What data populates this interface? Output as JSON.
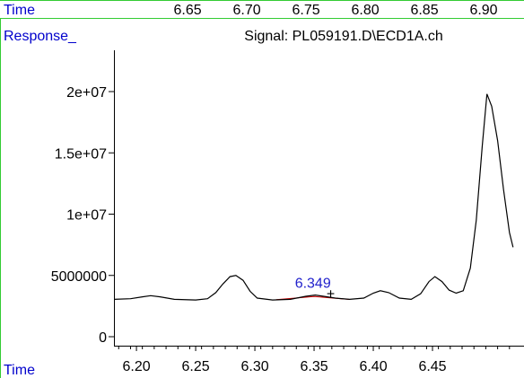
{
  "chart_data": {
    "type": "line",
    "title": "Signal: PL059191.D\\ECD1A.ch",
    "ylabel": "Response_",
    "xlabel": "Time",
    "top_axis_label": "Time",
    "ylim": [
      0,
      22000000
    ],
    "xlim": [
      6.181,
      6.525
    ],
    "yticks": [
      {
        "value": 0,
        "label": "0"
      },
      {
        "value": 5000000,
        "label": "5000000"
      },
      {
        "value": 10000000,
        "label": "1e+07"
      },
      {
        "value": 15000000,
        "label": "1.5e+07"
      },
      {
        "value": 20000000,
        "label": "2e+07"
      }
    ],
    "xticks": [
      {
        "value": 6.2,
        "label": "6.20"
      },
      {
        "value": 6.25,
        "label": "6.25"
      },
      {
        "value": 6.3,
        "label": "6.30"
      },
      {
        "value": 6.35,
        "label": "6.35"
      },
      {
        "value": 6.4,
        "label": "6.40"
      },
      {
        "value": 6.45,
        "label": "6.45"
      }
    ],
    "top_ticks": [
      "6.65",
      "6.70",
      "6.75",
      "6.80",
      "6.85",
      "6.90"
    ],
    "series": [
      {
        "color": "#000000",
        "points": [
          [
            6.181,
            3050000
          ],
          [
            6.195,
            3100000
          ],
          [
            6.205,
            3250000
          ],
          [
            6.212,
            3350000
          ],
          [
            6.22,
            3250000
          ],
          [
            6.232,
            3050000
          ],
          [
            6.25,
            3000000
          ],
          [
            6.26,
            3100000
          ],
          [
            6.267,
            3600000
          ],
          [
            6.273,
            4300000
          ],
          [
            6.279,
            4900000
          ],
          [
            6.284,
            5000000
          ],
          [
            6.29,
            4600000
          ],
          [
            6.296,
            3700000
          ],
          [
            6.302,
            3150000
          ],
          [
            6.315,
            3000000
          ],
          [
            6.33,
            3050000
          ],
          [
            6.343,
            3300000
          ],
          [
            6.351,
            3400000
          ],
          [
            6.358,
            3300000
          ],
          [
            6.368,
            3150000
          ],
          [
            6.38,
            3050000
          ],
          [
            6.392,
            3150000
          ],
          [
            6.4,
            3550000
          ],
          [
            6.406,
            3750000
          ],
          [
            6.413,
            3600000
          ],
          [
            6.422,
            3150000
          ],
          [
            6.432,
            3050000
          ],
          [
            6.44,
            3500000
          ],
          [
            6.447,
            4500000
          ],
          [
            6.452,
            4900000
          ],
          [
            6.458,
            4500000
          ],
          [
            6.464,
            3800000
          ],
          [
            6.47,
            3550000
          ],
          [
            6.476,
            3750000
          ],
          [
            6.482,
            5600000
          ],
          [
            6.487,
            9500000
          ],
          [
            6.492,
            15500000
          ],
          [
            6.496,
            19800000
          ],
          [
            6.5,
            18800000
          ],
          [
            6.505,
            16000000
          ],
          [
            6.51,
            12000000
          ],
          [
            6.515,
            8500000
          ],
          [
            6.518,
            7300000
          ]
        ]
      }
    ],
    "integration_baseline": {
      "color": "#cc0000",
      "points": [
        [
          6.318,
          3020000
        ],
        [
          6.35,
          3280000
        ],
        [
          6.38,
          3040000
        ]
      ]
    },
    "peak_label": {
      "text": "6.349",
      "x": 6.349,
      "y": 3400000,
      "color": "#2222cc"
    },
    "cursor_marker": {
      "symbol": "+",
      "x": 6.364,
      "y": 3550000
    },
    "colors": {
      "axis_label": "#0000cc",
      "frame": "#33cc33",
      "title": "#000000"
    }
  }
}
